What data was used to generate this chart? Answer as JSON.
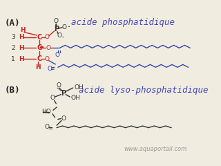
{
  "bg_color": "#f0ece0",
  "title_A": "acide phosphatidique",
  "title_B": "acide lyso-phosphatidique",
  "title_color": "#4848bb",
  "title_fontsize": 9,
  "label_A": "(A)",
  "label_B": "(B)",
  "label_fontsize": 9,
  "label_color": "#222222",
  "red_color": "#cc2020",
  "blue_color": "#3344aa",
  "black_color": "#333333",
  "watermark": "www.aquaportail.com",
  "watermark_color": "#999999",
  "watermark_fontsize": 6
}
